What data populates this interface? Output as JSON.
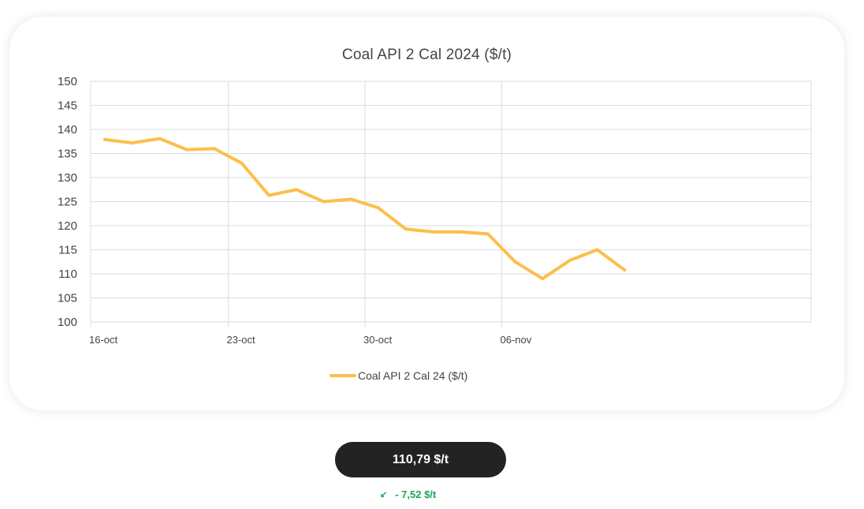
{
  "chart_data": {
    "type": "line",
    "title": "Coal API 2 Cal 2024 ($/t)",
    "xlabel": "",
    "ylabel": "",
    "ylim": [
      100,
      150
    ],
    "yticks": [
      "150",
      "145",
      "140",
      "135",
      "130",
      "125",
      "120",
      "115",
      "110",
      "105",
      "100"
    ],
    "xticks": [
      "16-oct",
      "23-oct",
      "30-oct",
      "06-nov"
    ],
    "grid": true,
    "legend_position": "bottom",
    "x": [
      "16-oct",
      "17-oct",
      "18-oct",
      "19-oct",
      "20-oct",
      "23-oct",
      "24-oct",
      "25-oct",
      "26-oct",
      "27-oct",
      "30-oct",
      "31-oct",
      "01-nov",
      "02-nov",
      "03-nov",
      "06-nov",
      "07-nov",
      "08-nov",
      "09-nov",
      "10-nov"
    ],
    "series": [
      {
        "name": "Coal API 2 Cal 24 ($/t)",
        "color": "#fbbf4b",
        "values": [
          137.9,
          137.2,
          138.1,
          135.8,
          136.0,
          133.0,
          126.3,
          127.5,
          125.0,
          125.5,
          123.7,
          119.3,
          118.7,
          118.7,
          118.3,
          112.5,
          109.0,
          112.8,
          115.0,
          110.8
        ]
      }
    ]
  },
  "price": {
    "value": "110,79 $/t"
  },
  "change": {
    "icon": "arrow-down-left-icon",
    "value": "- 7,52 $/t",
    "color": "#18a651"
  }
}
